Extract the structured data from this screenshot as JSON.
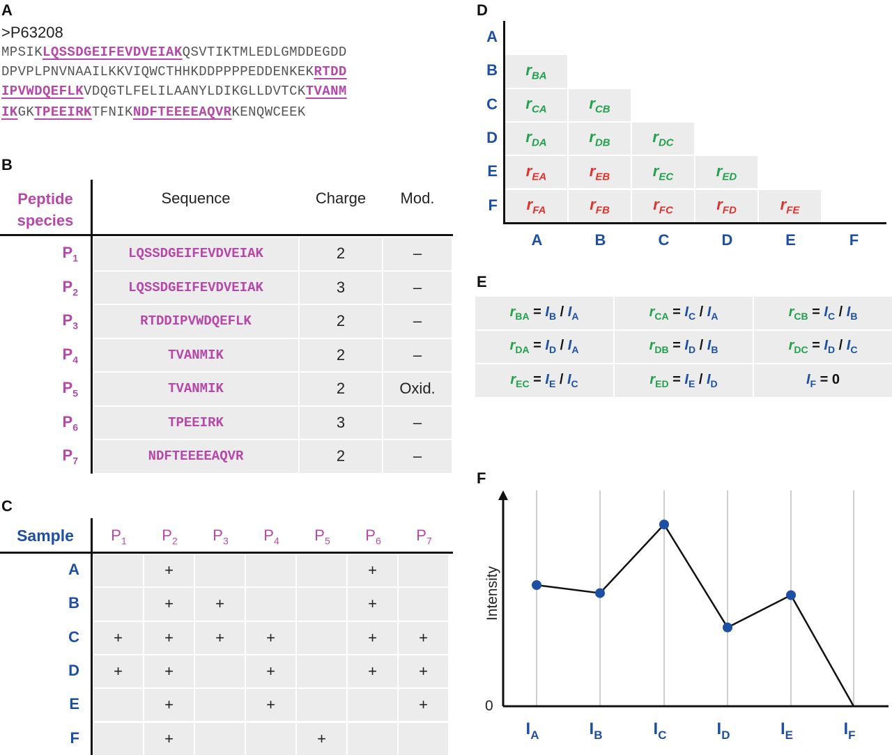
{
  "panels": {
    "A": "A",
    "B": "B",
    "C": "C",
    "D": "D",
    "E": "E",
    "F": "F"
  },
  "panelA": {
    "header": ">P63208",
    "lines": [
      [
        {
          "t": "MPSIK",
          "h": false
        },
        {
          "t": "LQSSDGEIFEVDVEIAK",
          "h": true
        },
        {
          "t": "QSVTIKTMLEDLGMDDEGDD",
          "h": false
        }
      ],
      [
        {
          "t": "DPVPLPNVNAAILKKVIQWCTHHKDDPPPPEDDENKEK",
          "h": false
        },
        {
          "t": "RTDD",
          "h": true
        }
      ],
      [
        {
          "t": "IPVWDQEFLK",
          "h": true
        },
        {
          "t": "VDQGTLFELILAANYLDIKGLLDVTCK",
          "h": false
        },
        {
          "t": "TVANM",
          "h": true
        }
      ],
      [
        {
          "t": "IK",
          "h": true
        },
        {
          "t": "GK",
          "h": false
        },
        {
          "t": "TPEEIRK",
          "h": true
        },
        {
          "t": "TFNIK",
          "h": false
        },
        {
          "t": "NDFTEEEEAQVR",
          "h": true
        },
        {
          "t": "KENQWCEEK",
          "h": false
        }
      ]
    ]
  },
  "panelB": {
    "headers": {
      "species_line1": "Peptide",
      "species_line2": "species",
      "sequence": "Sequence",
      "charge": "Charge",
      "mod": "Mod."
    },
    "rows": [
      {
        "p": "P",
        "n": "1",
        "seq": "LQSSDGEIFEVDVEIAK",
        "charge": "2",
        "mod": "–"
      },
      {
        "p": "P",
        "n": "2",
        "seq": "LQSSDGEIFEVDVEIAK",
        "charge": "3",
        "mod": "–"
      },
      {
        "p": "P",
        "n": "3",
        "seq": "RTDDIPVWDQEFLK",
        "charge": "2",
        "mod": "–"
      },
      {
        "p": "P",
        "n": "4",
        "seq": "TVANMIK",
        "charge": "2",
        "mod": "–"
      },
      {
        "p": "P",
        "n": "5",
        "seq": "TVANMIK",
        "charge": "2",
        "mod": "Oxid."
      },
      {
        "p": "P",
        "n": "6",
        "seq": "TPEEIRK",
        "charge": "3",
        "mod": "–"
      },
      {
        "p": "P",
        "n": "7",
        "seq": "NDFTEEEEAQVR",
        "charge": "2",
        "mod": "–"
      }
    ]
  },
  "panelC": {
    "corner": "Sample",
    "columns": [
      {
        "p": "P",
        "n": "1"
      },
      {
        "p": "P",
        "n": "2"
      },
      {
        "p": "P",
        "n": "3"
      },
      {
        "p": "P",
        "n": "4"
      },
      {
        "p": "P",
        "n": "5"
      },
      {
        "p": "P",
        "n": "6"
      },
      {
        "p": "P",
        "n": "7"
      }
    ],
    "mark": "+",
    "rows": [
      {
        "label": "A",
        "cells": [
          false,
          true,
          false,
          false,
          false,
          true,
          false
        ]
      },
      {
        "label": "B",
        "cells": [
          false,
          true,
          true,
          false,
          false,
          true,
          false
        ]
      },
      {
        "label": "C",
        "cells": [
          true,
          true,
          true,
          true,
          false,
          true,
          true
        ]
      },
      {
        "label": "D",
        "cells": [
          true,
          true,
          false,
          true,
          false,
          true,
          true
        ]
      },
      {
        "label": "E",
        "cells": [
          false,
          true,
          false,
          true,
          false,
          false,
          true
        ]
      },
      {
        "label": "F",
        "cells": [
          false,
          true,
          false,
          false,
          true,
          false,
          false
        ]
      }
    ]
  },
  "panelD": {
    "labels": [
      "A",
      "B",
      "C",
      "D",
      "E",
      "F"
    ],
    "r": "r",
    "cells": [
      {
        "row": 1,
        "col": 0,
        "sub": "BA",
        "color": "#21a04d"
      },
      {
        "row": 2,
        "col": 0,
        "sub": "CA",
        "color": "#21a04d"
      },
      {
        "row": 2,
        "col": 1,
        "sub": "CB",
        "color": "#21a04d"
      },
      {
        "row": 3,
        "col": 0,
        "sub": "DA",
        "color": "#21a04d"
      },
      {
        "row": 3,
        "col": 1,
        "sub": "DB",
        "color": "#21a04d"
      },
      {
        "row": 3,
        "col": 2,
        "sub": "DC",
        "color": "#21a04d"
      },
      {
        "row": 4,
        "col": 0,
        "sub": "EA",
        "color": "#e0322c"
      },
      {
        "row": 4,
        "col": 1,
        "sub": "EB",
        "color": "#e0322c"
      },
      {
        "row": 4,
        "col": 2,
        "sub": "EC",
        "color": "#21a04d"
      },
      {
        "row": 4,
        "col": 3,
        "sub": "ED",
        "color": "#21a04d"
      },
      {
        "row": 5,
        "col": 0,
        "sub": "FA",
        "color": "#e0322c"
      },
      {
        "row": 5,
        "col": 1,
        "sub": "FB",
        "color": "#e0322c"
      },
      {
        "row": 5,
        "col": 2,
        "sub": "FC",
        "color": "#e0322c"
      },
      {
        "row": 5,
        "col": 3,
        "sub": "FD",
        "color": "#e0322c"
      },
      {
        "row": 5,
        "col": 4,
        "sub": "FE",
        "color": "#e0322c"
      }
    ]
  },
  "panelE": {
    "equations": [
      {
        "r": "BA",
        "num": "B",
        "den": "A"
      },
      {
        "r": "CA",
        "num": "C",
        "den": "A"
      },
      {
        "r": "CB",
        "num": "C",
        "den": "B"
      },
      {
        "r": "DA",
        "num": "D",
        "den": "A"
      },
      {
        "r": "DB",
        "num": "D",
        "den": "B"
      },
      {
        "r": "DC",
        "num": "D",
        "den": "C"
      },
      {
        "r": "EC",
        "num": "E",
        "den": "C"
      },
      {
        "r": "ED",
        "num": "E",
        "den": "D"
      },
      {
        "zero": true,
        "sym": "F",
        "val": "0"
      }
    ]
  },
  "chart_data": {
    "type": "line",
    "ylabel": "Intensity",
    "ytick": "0",
    "categories": [
      {
        "p": "I",
        "s": "A"
      },
      {
        "p": "I",
        "s": "B"
      },
      {
        "p": "I",
        "s": "C"
      },
      {
        "p": "I",
        "s": "D"
      },
      {
        "p": "I",
        "s": "E"
      },
      {
        "p": "I",
        "s": "F"
      }
    ],
    "values": [
      0.6,
      0.56,
      0.9,
      0.39,
      0.55,
      0.0
    ],
    "ylim": [
      0,
      1
    ],
    "line_color": "#111111",
    "marker_color": "#1d4fa3",
    "grid": "vertical"
  }
}
